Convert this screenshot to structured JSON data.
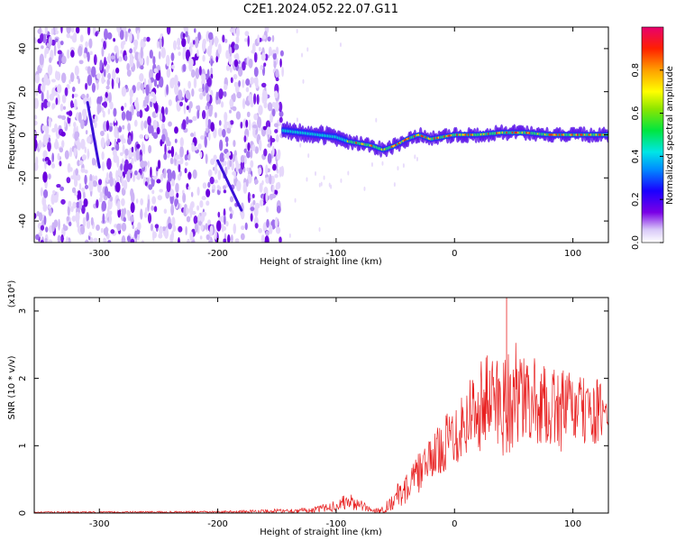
{
  "title": "C2E1.2024.052.22.07.G11",
  "chart_data": [
    {
      "type": "heatmap",
      "xlabel": "Height of straight line (km)",
      "ylabel": "Frequency (Hz)",
      "xlim": [
        -355,
        130
      ],
      "ylim": [
        -50,
        50
      ],
      "xticks": [
        -300,
        -200,
        -100,
        0,
        100
      ],
      "yticks": [
        -40,
        -20,
        0,
        20,
        40
      ],
      "colorbar": {
        "label": "Normalized spectral amplitude",
        "range": [
          0,
          1
        ],
        "ticks": [
          0.0,
          0.2,
          0.4,
          0.6,
          0.8
        ],
        "tick_labels": [
          "0.0",
          "0.2",
          "0.4",
          "0.6",
          "0.8"
        ]
      },
      "ridge": {
        "x": [
          -145,
          -130,
          -115,
          -100,
          -90,
          -80,
          -70,
          -60,
          -50,
          -40,
          -30,
          -20,
          -10,
          0,
          20,
          40,
          60,
          80,
          100,
          130
        ],
        "y": [
          2,
          1,
          0,
          -1,
          -3,
          -4,
          -5,
          -7,
          -5,
          -2,
          0,
          -2,
          -1,
          0,
          0,
          1,
          1,
          0,
          0,
          0
        ]
      },
      "noise_region_x": [
        -355,
        -145
      ]
    },
    {
      "type": "line",
      "xlabel": "Height of straight line (km)",
      "ylabel": "SNR (10 * v/v)",
      "multiplier": "(x10⁴)",
      "xlim": [
        -355,
        130
      ],
      "ylim": [
        0,
        3.2
      ],
      "xticks": [
        -300,
        -200,
        -100,
        0,
        100
      ],
      "yticks": [
        0,
        1,
        2,
        3
      ],
      "series": [
        {
          "color": "#e82020",
          "envelope": {
            "x": [
              -355,
              -200,
              -120,
              -100,
              -90,
              -80,
              -70,
              -60,
              -50,
              -40,
              -30,
              -20,
              -10,
              0,
              10,
              20,
              30,
              40,
              50,
              60,
              70,
              80,
              90,
              100,
              110,
              120,
              130
            ],
            "low": [
              0,
              0,
              0,
              0.02,
              0.05,
              0.03,
              0,
              0,
              0.05,
              0.15,
              0.3,
              0.5,
              0.6,
              0.7,
              0.8,
              0.9,
              1.0,
              0.8,
              0.9,
              1.0,
              1.0,
              1.0,
              0.9,
              1.0,
              1.0,
              1.0,
              1.0
            ],
            "high": [
              0.02,
              0.03,
              0.08,
              0.2,
              0.3,
              0.2,
              0.08,
              0.1,
              0.4,
              0.6,
              0.9,
              1.1,
              1.4,
              1.7,
              2.0,
              2.3,
              2.4,
              2.5,
              2.6,
              2.3,
              2.3,
              2.1,
              2.2,
              2.1,
              2.0,
              2.0,
              1.9
            ]
          }
        }
      ]
    }
  ]
}
